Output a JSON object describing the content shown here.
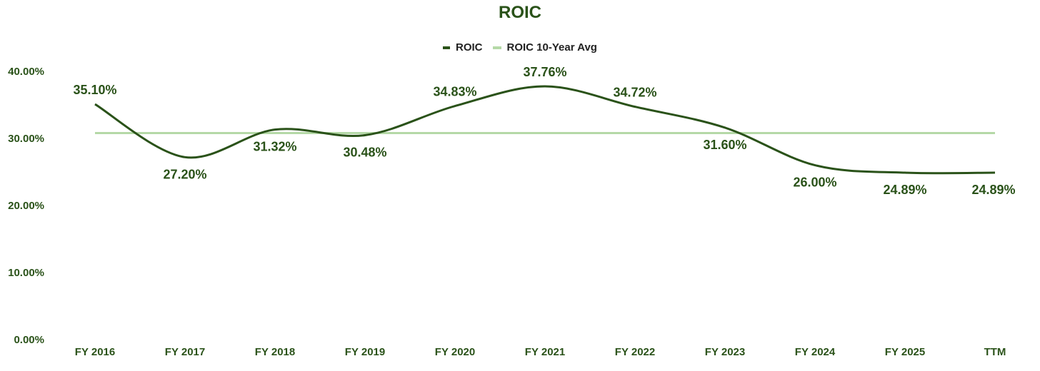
{
  "colors": {
    "series": "#2a5219",
    "average": "#b5d9a7",
    "text": "#2a5219"
  },
  "chart_data": {
    "type": "line",
    "title": "ROIC",
    "categories": [
      "FY 2016",
      "FY 2017",
      "FY 2018",
      "FY 2019",
      "FY 2020",
      "FY 2021",
      "FY 2022",
      "FY 2023",
      "FY 2024",
      "FY 2025",
      "TTM"
    ],
    "series": [
      {
        "name": "ROIC",
        "values": [
          35.1,
          27.2,
          31.32,
          30.48,
          34.83,
          37.76,
          34.72,
          31.6,
          26.0,
          24.89,
          24.89
        ],
        "labels": [
          "35.10%",
          "27.20%",
          "31.32%",
          "30.48%",
          "34.83%",
          "37.76%",
          "34.72%",
          "31.60%",
          "26.00%",
          "24.89%",
          "24.89%"
        ]
      },
      {
        "name": "ROIC 10-Year Avg",
        "value": 30.8
      }
    ],
    "ylim": [
      0,
      40
    ],
    "yticks": [
      0,
      10,
      20,
      30,
      40
    ],
    "ytick_labels": [
      "0.00%",
      "10.00%",
      "20.00%",
      "30.00%",
      "40.00%"
    ],
    "legend_position": "top-center",
    "grid": false
  }
}
